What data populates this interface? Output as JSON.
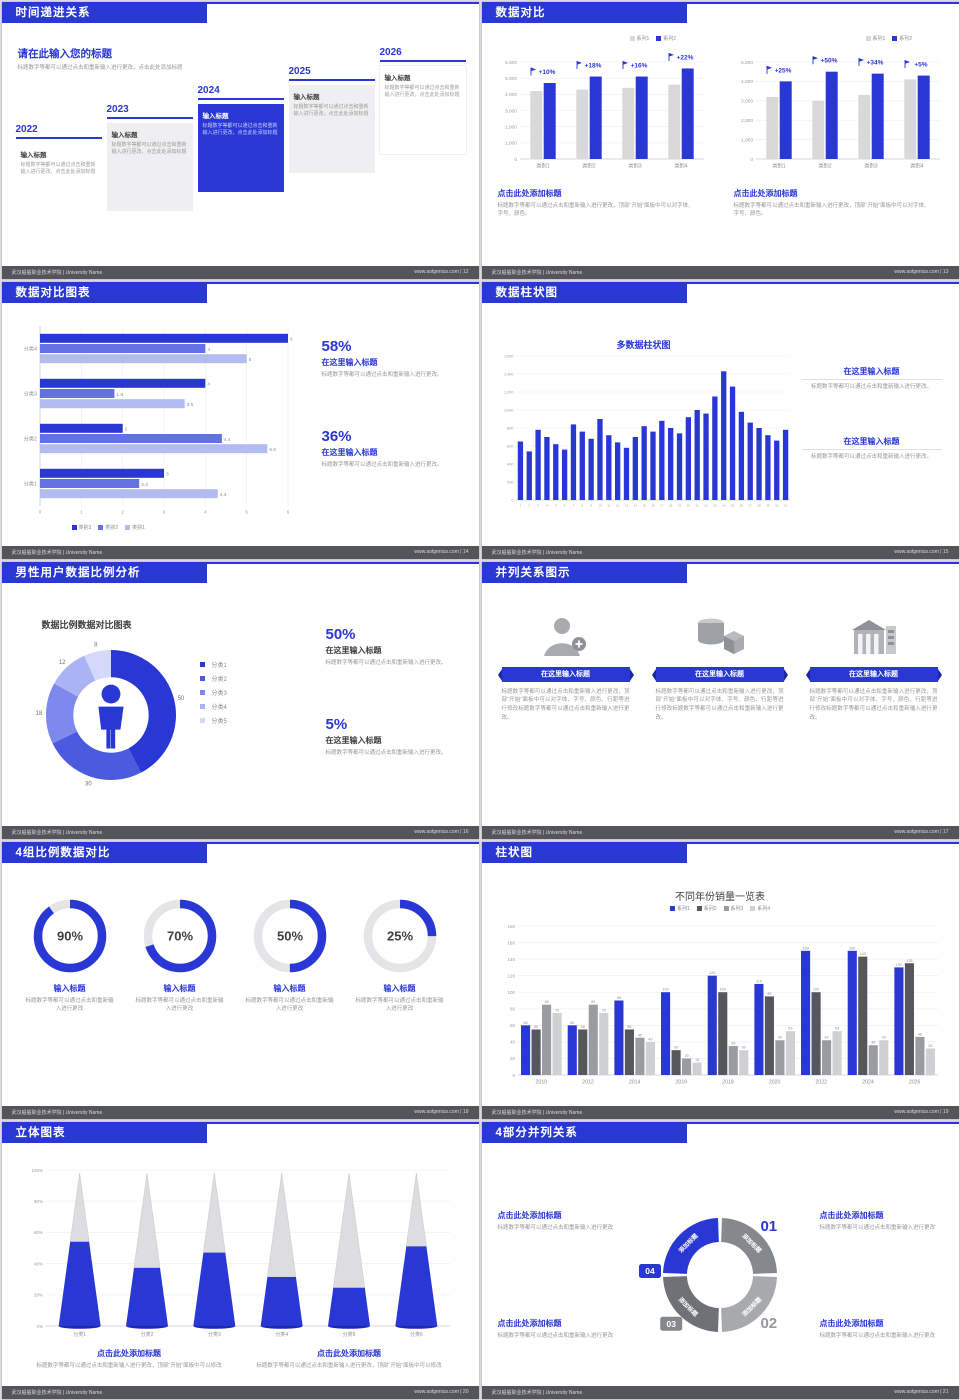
{
  "theme": {
    "blue": "#2937d4",
    "gray_series": "#d9d9d9",
    "footer_bg": "#54555a"
  },
  "footer": {
    "org": "武汉船舶职业技术学院 | University Name"
  },
  "slides": {
    "s12": {
      "title": "时间递进关系",
      "page_info": "www.aotgenius.com | 12",
      "heading": "请在此输入您的标题",
      "intro": "标题数字等都可以通过点击和重新输入进行更改，点击此处添加标题",
      "item_title": "输入标题",
      "item_body": "标题数字等都可以通过点击和重新输入进行更改，点击此处添加标题",
      "years": [
        "2022",
        "2023",
        "2024",
        "2025",
        "2026"
      ]
    },
    "s13": {
      "title": "数据对比",
      "page_info": "www.aotgenius.com | 13",
      "legend": [
        "系列1",
        "系列2"
      ],
      "caption_title": "点击此处添加标题",
      "caption_body": "标题数字等都可以通过点击和重新输入进行更改，顶部“开始”面板中可以对字体、字号、颜色。",
      "charts": [
        {
          "type": "grouped-column",
          "padL": 26,
          "ymax": 6000,
          "ylabels": [
            "0",
            "1,000",
            "2,000",
            "3,000",
            "4,000",
            "5,000",
            "6,000"
          ],
          "categories": [
            "类别1",
            "类别2",
            "类别3",
            "类别4"
          ],
          "growth": [
            "+10%",
            "+18%",
            "+16%",
            "+22%"
          ],
          "series": [
            {
              "name": "系列1",
              "color": "#d9d9d9",
              "values": [
                4200,
                4300,
                4400,
                4600
              ]
            },
            {
              "name": "系列2",
              "color": "#2937d4",
              "values": [
                4700,
                5100,
                5100,
                5600
              ]
            }
          ]
        },
        {
          "type": "grouped-column",
          "padL": 26,
          "ymax": 5000,
          "ylabels": [
            "0",
            "1,000",
            "2,000",
            "3,000",
            "4,000",
            "5,000"
          ],
          "categories": [
            "类别1",
            "类别2",
            "类别3",
            "类别4"
          ],
          "growth": [
            "+25%",
            "+50%",
            "+34%",
            "+5%"
          ],
          "series": [
            {
              "name": "系列1",
              "color": "#d9d9d9",
              "values": [
                3200,
                3000,
                3300,
                4100
              ]
            },
            {
              "name": "系列2",
              "color": "#2937d4",
              "values": [
                4000,
                4500,
                4400,
                4300
              ]
            }
          ]
        }
      ]
    },
    "s14": {
      "title": "数据对比图表",
      "page_info": "www.aotgenius.com | 14",
      "chart": {
        "type": "hbar",
        "xmax": 6,
        "categories": [
          "分类4",
          "分类3",
          "分类2",
          "分类1"
        ],
        "series": [
          {
            "name": "类别3",
            "color": "#2937d4"
          },
          {
            "name": "类别2",
            "color": "#6272e3"
          },
          {
            "name": "类别1",
            "color": "#b3bcf0"
          }
        ],
        "values": [
          [
            6,
            4,
            5
          ],
          [
            4,
            1.8,
            3.5
          ],
          [
            2,
            4.4,
            5.5
          ],
          [
            3,
            2.4,
            4.3
          ]
        ]
      },
      "stats": [
        {
          "pct": "58%",
          "title": "在这里输入标题",
          "body": "标题数字等都可以通过点击和重新输入进行更改。"
        },
        {
          "pct": "36%",
          "title": "在这里输入标题",
          "body": "标题数字等都可以通过点击和重新输入进行更改。"
        }
      ]
    },
    "s15": {
      "title": "数据柱状图",
      "page_info": "www.aotgenius.com | 15",
      "chart_title": "多数据柱状图",
      "chart": {
        "type": "column",
        "ymax": 1600,
        "ylabels": [
          "0",
          "200",
          "400",
          "600",
          "800",
          "1,000",
          "1,200",
          "1,400",
          "1,600"
        ],
        "values": [
          650,
          540,
          780,
          700,
          620,
          560,
          840,
          760,
          680,
          900,
          720,
          640,
          580,
          700,
          820,
          760,
          880,
          800,
          740,
          920,
          1000,
          960,
          1150,
          1430,
          1260,
          980,
          860,
          800,
          720,
          660,
          780
        ]
      },
      "blocks": [
        {
          "title": "在这里输入标题",
          "body": "标题数字等都可以通过点击和重新输入进行更改。"
        },
        {
          "title": "在这里输入标题",
          "body": "标题数字等都可以通过点击和重新输入进行更改。"
        }
      ]
    },
    "s16": {
      "title": "男性用户数据比例分析",
      "page_info": "www.aotgenius.com | 16",
      "chart_title": "数据比例数据对比图表",
      "donut": {
        "type": "donut",
        "segments": [
          {
            "label": "分类1",
            "value": 50,
            "color": "#2937d4"
          },
          {
            "label": "分类2",
            "value": 30,
            "color": "#4c5ae0"
          },
          {
            "label": "分类3",
            "value": 18,
            "color": "#7d89ec"
          },
          {
            "label": "分类4",
            "value": 12,
            "color": "#aab3f4"
          },
          {
            "label": "分类5",
            "value": 8,
            "color": "#d4d9fb"
          }
        ]
      },
      "stats": [
        {
          "pct": "50%",
          "title": "在这里输入标题",
          "body": "标题数字等都可以通过点击和重新输入进行更改。"
        },
        {
          "pct": "5%",
          "title": "在这里输入标题",
          "body": "标题数字等都可以通过点击和重新输入进行更改。"
        }
      ]
    },
    "s17": {
      "title": "并列关系图示",
      "page_info": "www.aotgenius.com | 17",
      "ribbon": "在这里输入标题",
      "body": "标题数字等都可以通过点击和重新输入进行更改，顶部“开始”面板中可以对字体、字号、颜色、行距等进行修改标题数字等都可以通过点击和重新输入进行更改。",
      "icons": [
        "female-user-icon",
        "cylinder-3d-icon",
        "building-icon"
      ]
    },
    "s18": {
      "title": "4组比例数据对比",
      "page_info": "www.aotgenius.com | 18",
      "items": [
        {
          "type": "ring",
          "pct": 90,
          "label": "90%",
          "title": "输入标题",
          "body": "标题数字等都可以通过点击和重新输入进行更改"
        },
        {
          "type": "ring",
          "pct": 70,
          "label": "70%",
          "title": "输入标题",
          "body": "标题数字等都可以通过点击和重新输入进行更改"
        },
        {
          "type": "ring",
          "pct": 50,
          "label": "50%",
          "title": "输入标题",
          "body": "标题数字等都可以通过点击和重新输入进行更改"
        },
        {
          "type": "ring",
          "pct": 25,
          "label": "25%",
          "title": "输入标题",
          "body": "标题数字等都可以通过点击和重新输入进行更改"
        }
      ]
    },
    "s19": {
      "title": "柱状图",
      "page_info": "www.aotgenius.com | 19",
      "chart_title": "不同年份销量一览表",
      "chart": {
        "type": "grouped-column",
        "padL": 20,
        "padT": 10,
        "ymax": 180,
        "valueLabels": true,
        "tickFont": 4.5,
        "ylabels": [
          "0",
          "20",
          "40",
          "60",
          "80",
          "100",
          "120",
          "140",
          "160",
          "180"
        ],
        "categories": [
          "2010",
          "2012",
          "2014",
          "2016",
          "2018",
          "2020",
          "2022",
          "2024",
          "2026"
        ],
        "series": [
          {
            "name": "系列1",
            "color": "#2937d4",
            "values": [
              60,
              60,
              90,
              100,
              120,
              110,
              150,
              150,
              130
            ]
          },
          {
            "name": "系列2",
            "color": "#55575c",
            "values": [
              55,
              55,
              55,
              30,
              100,
              95,
              100,
              143,
              135
            ]
          },
          {
            "name": "系列3",
            "color": "#9a9ca1",
            "values": [
              85,
              85,
              45,
              20,
              35,
              42,
              42,
              36,
              46
            ]
          },
          {
            "name": "系列4",
            "color": "#cfd0d3",
            "values": [
              75,
              75,
              40,
              15,
              30,
              53,
              53,
              42,
              32
            ]
          }
        ]
      }
    },
    "s20": {
      "title": "立体图表",
      "page_info": "www.aotgenius.com | 20",
      "chart": {
        "type": "cone",
        "ylabels": [
          "0%",
          "20%",
          "40%",
          "60%",
          "80%",
          "100%"
        ],
        "categories": [
          "分类1",
          "分类2",
          "分类3",
          "分类4",
          "分类5",
          "分类6"
        ],
        "values": [
          0.55,
          0.38,
          0.48,
          0.32,
          0.25,
          0.52
        ]
      },
      "blocks": [
        {
          "title": "点击此处添加标题",
          "body": "标题数字等都可以通过点击和重新输入进行更改，顶部“开始”面板中可以修改"
        },
        {
          "title": "点击此处添加标题",
          "body": "标题数字等都可以通过点击和重新输入进行更改，顶部“开始”面板中可以修改"
        }
      ]
    },
    "s21": {
      "title": "4部分并列关系",
      "page_info": "www.aotgenius.com | 21",
      "ring": {
        "type": "quad-ring",
        "label": "添加标题",
        "colors": [
          "#85888d",
          "#a7a9ad",
          "#6e7176",
          "#2937d4"
        ],
        "numbers": [
          "01",
          "02",
          "03",
          "04"
        ]
      },
      "blocks": [
        {
          "title": "点击此处添加标题",
          "body": "标题数字等都可以通过点击和重新输入进行更改"
        },
        {
          "title": "点击此处添加标题",
          "body": "标题数字等都可以通过点击和重新输入进行更改"
        },
        {
          "title": "点击此处添加标题",
          "body": "标题数字等都可以通过点击和重新输入进行更改"
        },
        {
          "title": "点击此处添加标题",
          "body": "标题数字等都可以通过点击和重新输入进行更改"
        }
      ]
    }
  }
}
